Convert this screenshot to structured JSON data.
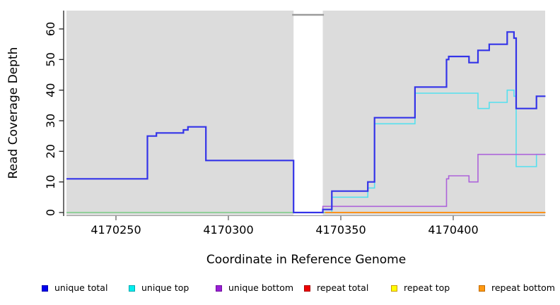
{
  "figure": {
    "x_axis": {
      "label": "Coordinate in Reference Genome",
      "tick_labels": [
        "4170250",
        "4170300",
        "4170350",
        "4170400"
      ],
      "tick_values": [
        4170250,
        4170300,
        4170350,
        4170400
      ]
    },
    "y_axis": {
      "label": "Read Coverage Depth",
      "tick_labels": [
        "0",
        "10",
        "20",
        "30",
        "40",
        "50",
        "60"
      ],
      "tick_values": [
        0,
        10,
        20,
        30,
        40,
        50,
        60
      ]
    },
    "panel_color": "#dcdcdc",
    "gap_region": {
      "x_start": 4170329,
      "x_end": 4170342
    }
  },
  "chart_data": {
    "type": "line",
    "subtype": "step-coverage",
    "title": "",
    "xlabel": "Coordinate in Reference Genome",
    "ylabel": "Read Coverage Depth",
    "x_range": [
      4170228,
      4170441
    ],
    "y_range": [
      0,
      66
    ],
    "grid": false,
    "legend_position": "bottom",
    "series": [
      {
        "name": "unique total",
        "color": "#3434e8",
        "points": [
          [
            4170228,
            11
          ],
          [
            4170264,
            25
          ],
          [
            4170268,
            26
          ],
          [
            4170280,
            27
          ],
          [
            4170282,
            28
          ],
          [
            4170290,
            17
          ],
          [
            4170329,
            0
          ],
          [
            4170342,
            1
          ],
          [
            4170346,
            7
          ],
          [
            4170362,
            10
          ],
          [
            4170365,
            31
          ],
          [
            4170383,
            41
          ],
          [
            4170397,
            50
          ],
          [
            4170398,
            51
          ],
          [
            4170407,
            49
          ],
          [
            4170411,
            53
          ],
          [
            4170416,
            55
          ],
          [
            4170424,
            59
          ],
          [
            4170427,
            57
          ],
          [
            4170428,
            34
          ],
          [
            4170437,
            38
          ]
        ]
      },
      {
        "name": "unique top",
        "color": "#55e0ee",
        "points": [
          [
            4170228,
            0
          ],
          [
            4170346,
            5
          ],
          [
            4170362,
            8
          ],
          [
            4170365,
            29
          ],
          [
            4170383,
            39
          ],
          [
            4170411,
            34
          ],
          [
            4170416,
            36
          ],
          [
            4170424,
            40
          ],
          [
            4170427,
            38
          ],
          [
            4170428,
            15
          ],
          [
            4170437,
            19
          ]
        ]
      },
      {
        "name": "unique bottom",
        "color": "#ad63da",
        "points": [
          [
            4170228,
            0
          ],
          [
            4170342,
            2
          ],
          [
            4170397,
            11
          ],
          [
            4170398,
            12
          ],
          [
            4170407,
            10
          ],
          [
            4170411,
            19
          ]
        ]
      },
      {
        "name": "repeat total",
        "color": "#dd1111",
        "points": [
          [
            4170228,
            0
          ]
        ]
      },
      {
        "name": "repeat top",
        "color": "#eeee22",
        "points": [
          [
            4170228,
            0
          ]
        ]
      },
      {
        "name": "repeat bottom",
        "color": "#ff8c1a",
        "points": [
          [
            4170343,
            0
          ]
        ]
      }
    ],
    "baseline_artifact": {
      "color": "#8fd996",
      "x_start": 4170228,
      "x_end": 4170343,
      "y": 0
    }
  },
  "legend": {
    "items": [
      {
        "label": "unique total",
        "color": "#0000ee",
        "border": "#0000b0"
      },
      {
        "label": "unique top",
        "color": "#00eeee",
        "border": "#00a8b0"
      },
      {
        "label": "unique bottom",
        "color": "#9a1fd6",
        "border": "#70109e"
      },
      {
        "label": "repeat total",
        "color": "#ee0000",
        "border": "#aa0000"
      },
      {
        "label": "repeat top",
        "color": "#ffff00",
        "border": "#cc9900"
      },
      {
        "label": "repeat bottom",
        "color": "#ff9912",
        "border": "#c06a00"
      }
    ]
  }
}
